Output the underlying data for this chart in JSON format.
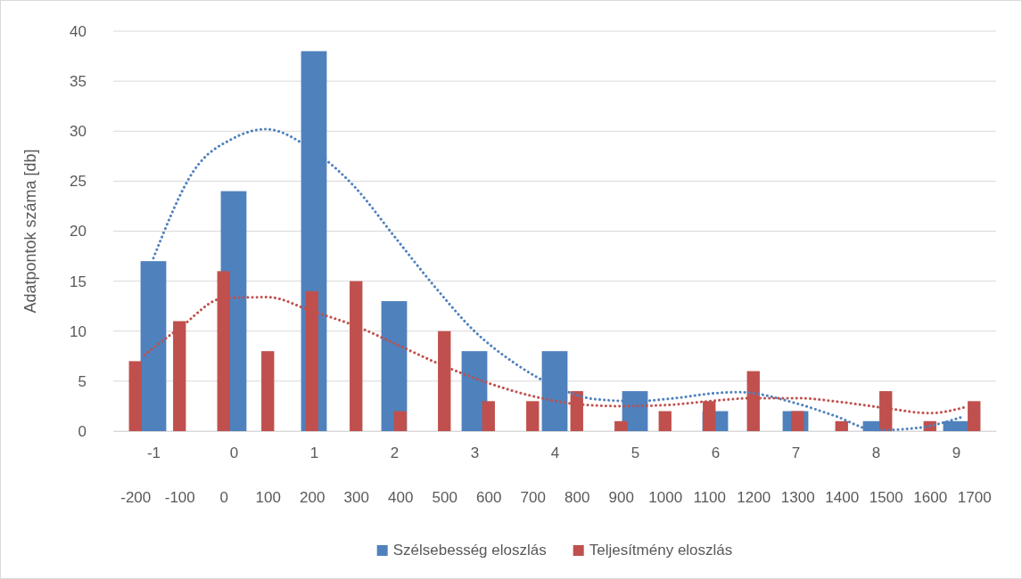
{
  "chart_data": {
    "type": "bar",
    "ylabel": "Adatpontok száma [db]",
    "xlim": [
      -1.5,
      9.5
    ],
    "xticks": [
      -1,
      0,
      1,
      2,
      3,
      4,
      5,
      6,
      7,
      8,
      9
    ],
    "x2lim": [
      -250,
      1750
    ],
    "x2ticks": [
      -200,
      -100,
      0,
      100,
      200,
      300,
      400,
      500,
      600,
      700,
      800,
      900,
      1000,
      1100,
      1200,
      1300,
      1400,
      1500,
      1600,
      1700
    ],
    "ylim": [
      0,
      40
    ],
    "yticks": [
      0,
      5,
      10,
      15,
      20,
      25,
      30,
      35,
      40
    ],
    "grid": "y",
    "legend": "bottom",
    "marker": "none",
    "series": [
      {
        "name": "Szélsebesség eloszlás",
        "color": "#4f81bd",
        "x": [
          -1,
          0,
          1,
          2,
          3,
          4,
          5,
          6,
          7,
          8,
          9
        ],
        "values": [
          17,
          24,
          38,
          13,
          8,
          8,
          4,
          2,
          2,
          1,
          1
        ]
      },
      {
        "name": "Teljesítmény eloszlás",
        "color": "#c0504d",
        "axis": "x2",
        "x": [
          -200,
          -100,
          0,
          100,
          200,
          300,
          400,
          500,
          600,
          700,
          800,
          900,
          1000,
          1100,
          1200,
          1300,
          1400,
          1500,
          1600,
          1700
        ],
        "values": [
          7,
          11,
          16,
          8,
          14,
          15,
          2,
          10,
          3,
          3,
          4,
          1,
          2,
          3,
          6,
          2,
          1,
          4,
          1,
          3
        ]
      },
      {
        "color": "#4f81bd",
        "type": "line",
        "line_style": "dotted",
        "x": [
          -1,
          -0.5,
          0,
          0.4,
          1,
          1.5,
          2,
          2.5,
          3,
          3.5,
          4,
          4.5,
          5,
          5.5,
          6,
          6.3,
          7,
          7.5,
          8,
          8.5,
          9.07
        ],
        "values": [
          17.3,
          26,
          29.3,
          30.2,
          28,
          24.5,
          19.5,
          14.5,
          10,
          6.8,
          4.5,
          3.2,
          3,
          3.3,
          3.8,
          3.9,
          2.8,
          1.5,
          0.1,
          0.3,
          1.4
        ]
      },
      {
        "color": "#c0504d",
        "type": "line",
        "line_style": "dotted",
        "axis": "x2",
        "x": [
          -180,
          -100,
          0,
          100,
          200,
          300,
          400,
          500,
          600,
          700,
          800,
          900,
          1000,
          1100,
          1200,
          1300,
          1400,
          1500,
          1600,
          1680
        ],
        "values": [
          7.6,
          10.3,
          13.3,
          13.4,
          12,
          10.5,
          8.5,
          6.5,
          4.8,
          3.5,
          2.7,
          2.5,
          2.6,
          3,
          3.3,
          3.3,
          2.9,
          2.3,
          1.8,
          2.4
        ]
      }
    ]
  }
}
